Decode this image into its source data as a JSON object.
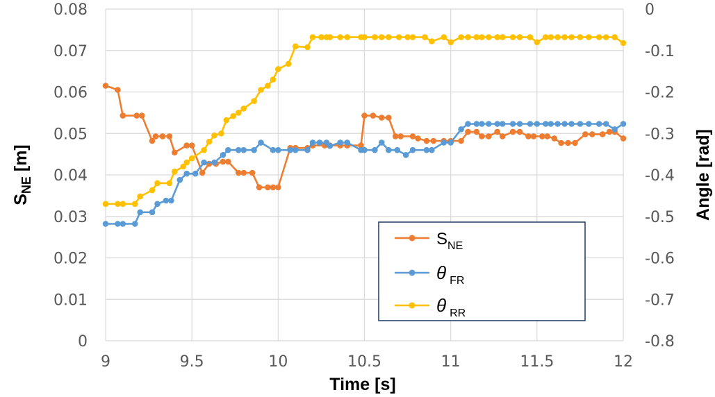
{
  "chart_data": {
    "type": "line",
    "xlabel": "Time [s]",
    "ylabel_left": {
      "main": "S",
      "sub": "NE",
      "unit": " [m]"
    },
    "ylabel_right": "Angle [rad]",
    "xlim": [
      9,
      12
    ],
    "ylim_left": [
      0,
      0.08
    ],
    "ylim_right": [
      -0.8,
      0
    ],
    "x_ticks": [
      "9",
      "9.5",
      "10",
      "10.5",
      "11",
      "11.5",
      "12"
    ],
    "y_left_ticks": [
      "0",
      "0.01",
      "0.02",
      "0.03",
      "0.04",
      "0.05",
      "0.06",
      "0.07",
      "0.08"
    ],
    "y_right_ticks": [
      "-0.8",
      "-0.7",
      "-0.6",
      "-0.5",
      "-0.4",
      "-0.3",
      "-0.2",
      "-0.1",
      "0"
    ],
    "grid": true,
    "legend_position": "bottom-right",
    "series": [
      {
        "name": "S_NE",
        "label_main": "S",
        "label_sub": "NE",
        "axis": "left",
        "color": "#ED7D31",
        "points": [
          [
            9.0,
            0.0615
          ],
          [
            9.07,
            0.0605
          ],
          [
            9.1,
            0.0543
          ],
          [
            9.18,
            0.0543
          ],
          [
            9.21,
            0.0543
          ],
          [
            9.27,
            0.0482
          ],
          [
            9.29,
            0.0493
          ],
          [
            9.33,
            0.0493
          ],
          [
            9.37,
            0.0493
          ],
          [
            9.4,
            0.0454
          ],
          [
            9.47,
            0.0471
          ],
          [
            9.5,
            0.0471
          ],
          [
            9.56,
            0.0405
          ],
          [
            9.6,
            0.0427
          ],
          [
            9.64,
            0.0427
          ],
          [
            9.68,
            0.0432
          ],
          [
            9.71,
            0.0432
          ],
          [
            9.77,
            0.0405
          ],
          [
            9.8,
            0.0405
          ],
          [
            9.85,
            0.0405
          ],
          [
            9.89,
            0.037
          ],
          [
            9.94,
            0.037
          ],
          [
            9.97,
            0.037
          ],
          [
            10.0,
            0.037
          ],
          [
            10.07,
            0.0465
          ],
          [
            10.1,
            0.0465
          ],
          [
            10.17,
            0.0465
          ],
          [
            10.2,
            0.0471
          ],
          [
            10.27,
            0.0471
          ],
          [
            10.3,
            0.0471
          ],
          [
            10.36,
            0.0471
          ],
          [
            10.4,
            0.0471
          ],
          [
            10.48,
            0.0471
          ],
          [
            10.5,
            0.0543
          ],
          [
            10.55,
            0.0543
          ],
          [
            10.6,
            0.0538
          ],
          [
            10.64,
            0.0538
          ],
          [
            10.68,
            0.0493
          ],
          [
            10.71,
            0.0493
          ],
          [
            10.78,
            0.0493
          ],
          [
            10.81,
            0.0488
          ],
          [
            10.86,
            0.0482
          ],
          [
            10.9,
            0.0482
          ],
          [
            10.96,
            0.0482
          ],
          [
            11.0,
            0.0482
          ],
          [
            11.06,
            0.0482
          ],
          [
            11.1,
            0.0504
          ],
          [
            11.15,
            0.0504
          ],
          [
            11.18,
            0.0493
          ],
          [
            11.22,
            0.0493
          ],
          [
            11.27,
            0.0504
          ],
          [
            11.3,
            0.0493
          ],
          [
            11.36,
            0.0504
          ],
          [
            11.4,
            0.0504
          ],
          [
            11.45,
            0.0493
          ],
          [
            11.48,
            0.0493
          ],
          [
            11.53,
            0.0493
          ],
          [
            11.56,
            0.0493
          ],
          [
            11.6,
            0.0488
          ],
          [
            11.64,
            0.0477
          ],
          [
            11.68,
            0.0477
          ],
          [
            11.72,
            0.0477
          ],
          [
            11.78,
            0.0498
          ],
          [
            11.82,
            0.0498
          ],
          [
            11.88,
            0.0498
          ],
          [
            11.92,
            0.0504
          ],
          [
            11.95,
            0.0504
          ],
          [
            12.0,
            0.0488
          ]
        ]
      },
      {
        "name": "theta_FR",
        "label_main": "θ",
        "label_sub": "FR",
        "axis": "right",
        "color": "#5B9BD5",
        "points": [
          [
            9.0,
            -0.518
          ],
          [
            9.07,
            -0.518
          ],
          [
            9.1,
            -0.518
          ],
          [
            9.17,
            -0.518
          ],
          [
            9.2,
            -0.49
          ],
          [
            9.27,
            -0.49
          ],
          [
            9.3,
            -0.47
          ],
          [
            9.35,
            -0.462
          ],
          [
            9.38,
            -0.462
          ],
          [
            9.43,
            -0.412
          ],
          [
            9.47,
            -0.397
          ],
          [
            9.52,
            -0.397
          ],
          [
            9.57,
            -0.37
          ],
          [
            9.63,
            -0.37
          ],
          [
            9.68,
            -0.352
          ],
          [
            9.71,
            -0.34
          ],
          [
            9.77,
            -0.34
          ],
          [
            9.8,
            -0.34
          ],
          [
            9.86,
            -0.34
          ],
          [
            9.9,
            -0.322
          ],
          [
            9.97,
            -0.34
          ],
          [
            10.0,
            -0.34
          ],
          [
            10.07,
            -0.34
          ],
          [
            10.1,
            -0.34
          ],
          [
            10.17,
            -0.34
          ],
          [
            10.2,
            -0.322
          ],
          [
            10.24,
            -0.322
          ],
          [
            10.28,
            -0.322
          ],
          [
            10.3,
            -0.33
          ],
          [
            10.36,
            -0.322
          ],
          [
            10.4,
            -0.322
          ],
          [
            10.48,
            -0.34
          ],
          [
            10.5,
            -0.34
          ],
          [
            10.56,
            -0.34
          ],
          [
            10.6,
            -0.322
          ],
          [
            10.64,
            -0.34
          ],
          [
            10.69,
            -0.34
          ],
          [
            10.74,
            -0.352
          ],
          [
            10.78,
            -0.34
          ],
          [
            10.86,
            -0.34
          ],
          [
            10.89,
            -0.34
          ],
          [
            10.96,
            -0.322
          ],
          [
            11.0,
            -0.322
          ],
          [
            11.06,
            -0.29
          ],
          [
            11.1,
            -0.277
          ],
          [
            11.15,
            -0.277
          ],
          [
            11.18,
            -0.277
          ],
          [
            11.22,
            -0.277
          ],
          [
            11.27,
            -0.277
          ],
          [
            11.3,
            -0.277
          ],
          [
            11.36,
            -0.277
          ],
          [
            11.4,
            -0.277
          ],
          [
            11.46,
            -0.277
          ],
          [
            11.5,
            -0.277
          ],
          [
            11.55,
            -0.277
          ],
          [
            11.58,
            -0.277
          ],
          [
            11.62,
            -0.277
          ],
          [
            11.66,
            -0.277
          ],
          [
            11.7,
            -0.277
          ],
          [
            11.75,
            -0.277
          ],
          [
            11.8,
            -0.277
          ],
          [
            11.86,
            -0.277
          ],
          [
            11.9,
            -0.277
          ],
          [
            11.95,
            -0.29
          ],
          [
            12.0,
            -0.277
          ]
        ]
      },
      {
        "name": "theta_RR",
        "label_main": "θ",
        "label_sub": "RR",
        "axis": "right",
        "color": "#FFC000",
        "points": [
          [
            9.0,
            -0.47
          ],
          [
            9.07,
            -0.47
          ],
          [
            9.1,
            -0.47
          ],
          [
            9.17,
            -0.47
          ],
          [
            9.2,
            -0.452
          ],
          [
            9.27,
            -0.437
          ],
          [
            9.3,
            -0.42
          ],
          [
            9.37,
            -0.42
          ],
          [
            9.4,
            -0.392
          ],
          [
            9.45,
            -0.38
          ],
          [
            9.47,
            -0.37
          ],
          [
            9.5,
            -0.36
          ],
          [
            9.57,
            -0.34
          ],
          [
            9.6,
            -0.32
          ],
          [
            9.63,
            -0.305
          ],
          [
            9.67,
            -0.3
          ],
          [
            9.7,
            -0.268
          ],
          [
            9.74,
            -0.258
          ],
          [
            9.77,
            -0.25
          ],
          [
            9.8,
            -0.24
          ],
          [
            9.86,
            -0.222
          ],
          [
            9.9,
            -0.195
          ],
          [
            9.94,
            -0.185
          ],
          [
            9.97,
            -0.17
          ],
          [
            10.0,
            -0.145
          ],
          [
            10.06,
            -0.132
          ],
          [
            10.1,
            -0.09
          ],
          [
            10.17,
            -0.092
          ],
          [
            10.2,
            -0.068
          ],
          [
            10.25,
            -0.068
          ],
          [
            10.28,
            -0.068
          ],
          [
            10.3,
            -0.068
          ],
          [
            10.36,
            -0.068
          ],
          [
            10.4,
            -0.068
          ],
          [
            10.48,
            -0.068
          ],
          [
            10.5,
            -0.068
          ],
          [
            10.56,
            -0.068
          ],
          [
            10.6,
            -0.068
          ],
          [
            10.64,
            -0.068
          ],
          [
            10.7,
            -0.068
          ],
          [
            10.75,
            -0.068
          ],
          [
            10.78,
            -0.068
          ],
          [
            10.85,
            -0.068
          ],
          [
            10.89,
            -0.078
          ],
          [
            10.96,
            -0.068
          ],
          [
            11.0,
            -0.08
          ],
          [
            11.06,
            -0.068
          ],
          [
            11.1,
            -0.068
          ],
          [
            11.15,
            -0.068
          ],
          [
            11.18,
            -0.068
          ],
          [
            11.22,
            -0.068
          ],
          [
            11.27,
            -0.068
          ],
          [
            11.3,
            -0.068
          ],
          [
            11.36,
            -0.068
          ],
          [
            11.4,
            -0.068
          ],
          [
            11.46,
            -0.068
          ],
          [
            11.5,
            -0.08
          ],
          [
            11.55,
            -0.068
          ],
          [
            11.58,
            -0.068
          ],
          [
            11.62,
            -0.068
          ],
          [
            11.66,
            -0.068
          ],
          [
            11.7,
            -0.068
          ],
          [
            11.75,
            -0.068
          ],
          [
            11.8,
            -0.068
          ],
          [
            11.86,
            -0.068
          ],
          [
            11.9,
            -0.068
          ],
          [
            11.95,
            -0.068
          ],
          [
            12.0,
            -0.082
          ]
        ]
      }
    ]
  }
}
